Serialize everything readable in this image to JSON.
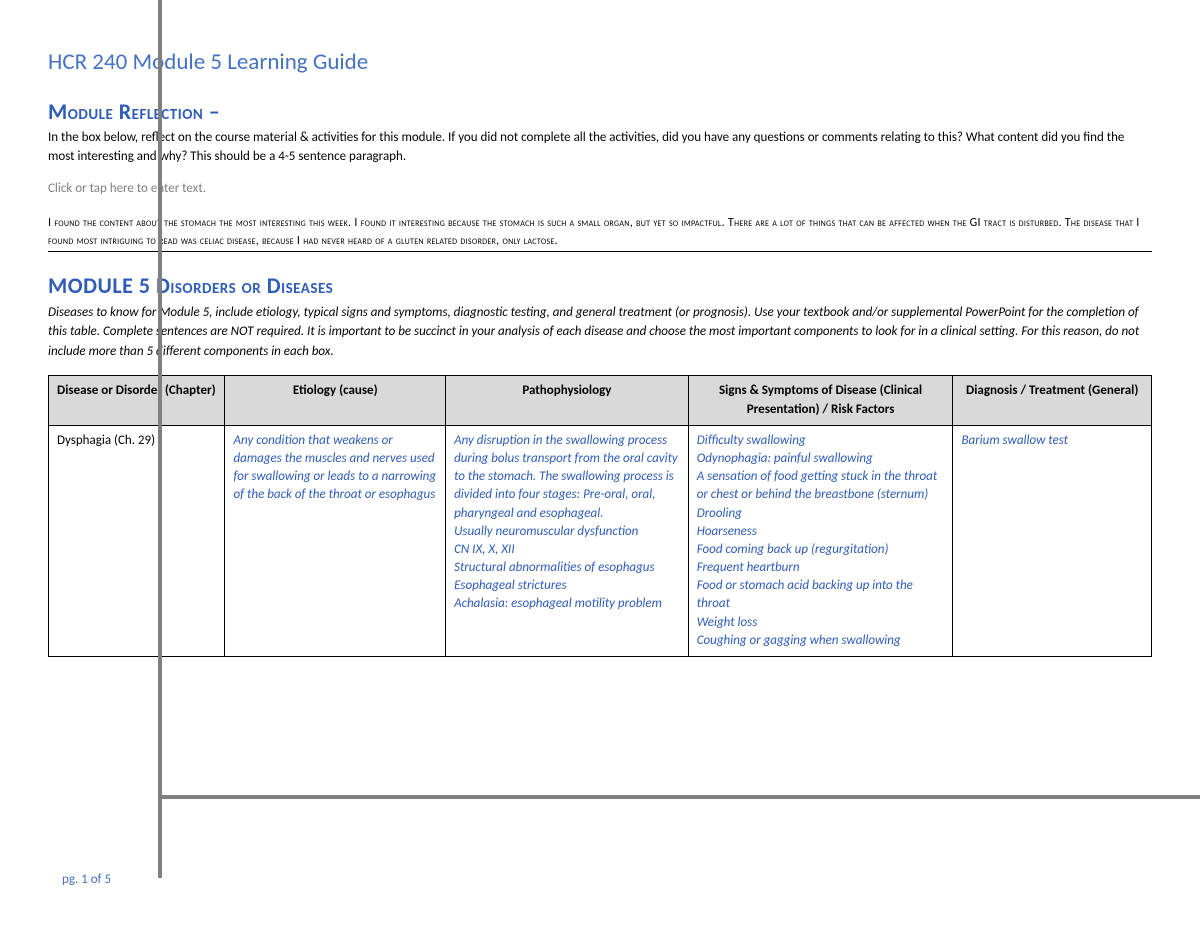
{
  "title": "HCR 240 Module 5 Learning Guide",
  "reflection_heading": "Module Reflection –",
  "reflection_instructions": "In the box below, reflect on the course material & activities for this module.  If you did not complete all the activities, did you have any questions or comments relating to this?  What content did you find the most interesting and why?  This should be a 4-5 sentence paragraph.",
  "placeholder_hint": "Click or tap here to enter text.",
  "reflection_body": "I found the content about the stomach the most interesting this week. I found it interesting because the stomach is such a small organ, but yet so impactful. There are a lot of things that can be affected when the GI tract is disturbed. The disease that I found most intriguing to read was celiac disease, because I had never heard of a gluten related disorder, only lactose.",
  "disorders_heading": "MODULE 5 Disorders or Diseases",
  "disorders_instructions": "Diseases to know for Module 5, include etiology, typical signs and symptoms, diagnostic testing, and general treatment (or prognosis).  Use your textbook and/or supplemental PowerPoint for the completion of this table.  Complete sentences are NOT required.   It is important to be succinct in your analysis of each disease and choose the most important components to look for in a clinical setting. For this reason, do not include more than 5 different components in each box.",
  "table": {
    "columns": [
      "Disease or Disorder (Chapter)",
      "Etiology (cause)",
      "Pathophysiology",
      "Signs & Symptoms of Disease (Clinical Presentation) / Risk Factors",
      "Diagnosis / Treatment (General)"
    ],
    "col_widths_pct": [
      16,
      20,
      22,
      24,
      18
    ],
    "rows": [
      {
        "disease": "Dysphagia (Ch. 29)",
        "etiology": "Any condition that weakens or damages the muscles and nerves used for swallowing or leads to a narrowing of the back of the throat or esophagus",
        "patho": "Any disruption in the swallowing process during bolus transport from the oral cavity to the stomach. The swallowing process is divided into four stages: Pre-oral, oral, pharyngeal and esophageal.\nUsually neuromuscular dysfunction\nCN IX, X, XII\nStructural abnormalities of esophagus\nEsophageal strictures\nAchalasia: esophageal motility problem",
        "signs": "Difficulty swallowing\nOdynophagia: painful swallowing\nA sensation of food getting stuck in the throat or chest or behind the breastbone (sternum)\nDrooling\nHoarseness\nFood coming back up (regurgitation)\nFrequent heartburn\nFood or stomach acid backing up into the throat\nWeight loss\nCoughing or gagging when swallowing",
        "dx": "Barium swallow test"
      }
    ]
  },
  "page_num": "pg. 1 of 5",
  "colors": {
    "heading_blue": "#2e5cb8",
    "title_blue": "#4472c4",
    "answer_blue": "#2e5cb8",
    "header_bg": "#d9d9d9",
    "guide_gray": "#808080",
    "hint_gray": "#7f7f7f"
  }
}
